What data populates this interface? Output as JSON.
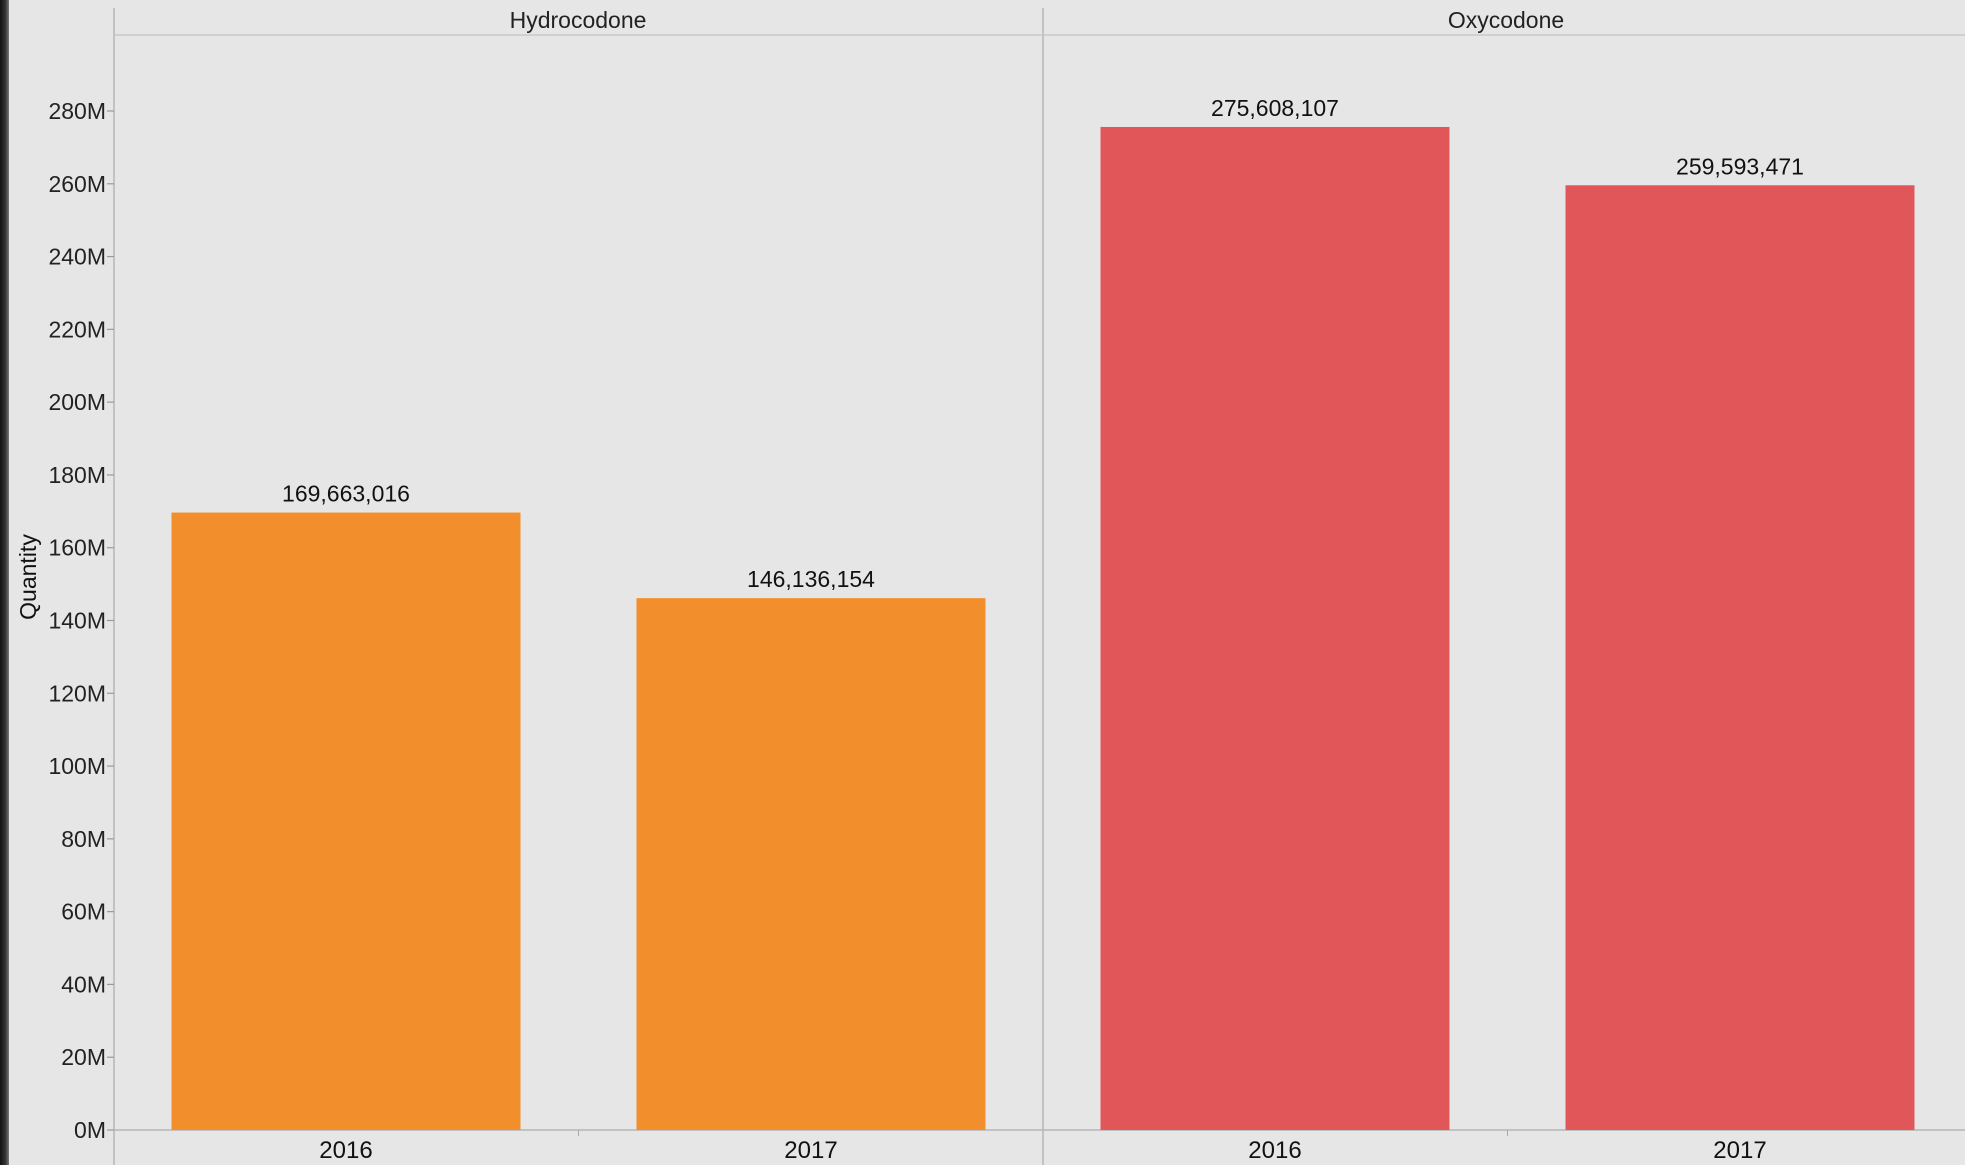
{
  "chart_data": {
    "type": "bar",
    "facet_by": "drug",
    "ylabel": "Quantity",
    "ylim": [
      0,
      300000000
    ],
    "yticks": [
      0,
      20000000,
      40000000,
      60000000,
      80000000,
      100000000,
      120000000,
      140000000,
      160000000,
      180000000,
      200000000,
      220000000,
      240000000,
      260000000,
      280000000
    ],
    "ytick_labels": [
      "0M",
      "20M",
      "40M",
      "60M",
      "80M",
      "100M",
      "120M",
      "140M",
      "160M",
      "180M",
      "200M",
      "220M",
      "240M",
      "260M",
      "280M"
    ],
    "grid": false,
    "legend": "none",
    "panels": [
      {
        "name": "Hydrocodone",
        "color": "#f28e2c",
        "categories": [
          "2016",
          "2017"
        ],
        "values": [
          169663016,
          146136154
        ],
        "value_labels": [
          "169,663,016",
          "146,136,154"
        ]
      },
      {
        "name": "Oxycodone",
        "color": "#e15759",
        "categories": [
          "2016",
          "2017"
        ],
        "values": [
          275608107,
          259593471
        ],
        "value_labels": [
          "275,608,107",
          "259,593,471"
        ]
      }
    ]
  }
}
